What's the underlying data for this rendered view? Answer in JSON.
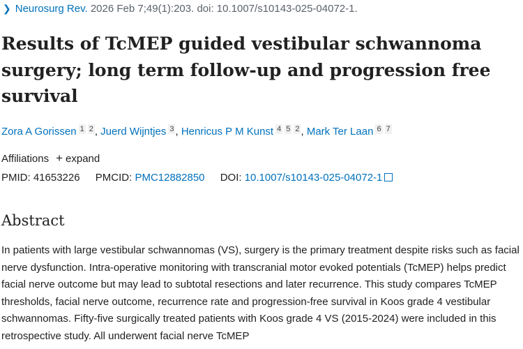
{
  "citation": {
    "journal": "Neurosurg Rev.",
    "details": "2026 Feb 7;49(1):203. doi: 10.1007/s10143-025-04072-1."
  },
  "title": "Results of TcMEP guided vestibular schwannoma surgery; long term follow-up and progression free survival",
  "authors": [
    {
      "name": "Zora A Gorissen",
      "affs": [
        "1",
        "2"
      ]
    },
    {
      "name": "Juerd Wijntjes",
      "affs": [
        "3"
      ]
    },
    {
      "name": "Henricus P M Kunst",
      "affs": [
        "4",
        "5",
        "2"
      ]
    },
    {
      "name": "Mark Ter Laan",
      "affs": [
        "6",
        "7"
      ]
    }
  ],
  "affiliations": {
    "label": "Affiliations",
    "expand": "expand"
  },
  "ids": {
    "pmid_label": "PMID:",
    "pmid": "41653226",
    "pmcid_label": "PMCID:",
    "pmcid": "PMC12882850",
    "doi_label": "DOI:",
    "doi": "10.1007/s10143-025-04072-1"
  },
  "abstract": {
    "heading": "Abstract",
    "text": "In patients with large vestibular schwannomas (VS), surgery is the primary treatment despite risks such as facial nerve dysfunction. Intra-operative monitoring with transcranial motor evoked potentials (TcMEP) helps predict facial nerve outcome but may lead to subtotal resections and later recurrence. This study compares TcMEP thresholds, facial nerve outcome, recurrence rate and progression-free survival in Koos grade 4 vestibular schwannomas. Fifty-five surgically treated patients with Koos grade 4 VS (2015-2024) were included in this retrospective study. All underwent facial nerve TcMEP"
  }
}
